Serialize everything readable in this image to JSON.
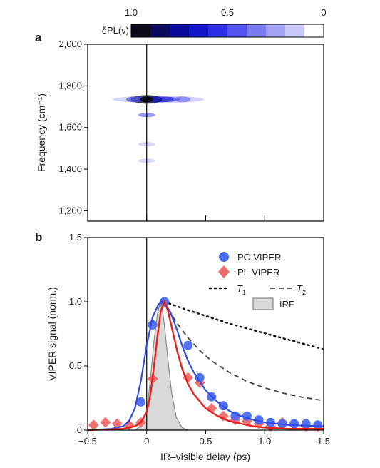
{
  "figure": {
    "panel_a": "a",
    "panel_b": "b"
  },
  "colorbar": {
    "label": "δPL(ν)",
    "tick_labels": [
      "1.0",
      "0.5",
      "0"
    ],
    "tick_values": [
      1.0,
      0.5,
      0.0
    ],
    "colors": [
      "#0a0a1a",
      "#0a0a5c",
      "#0a0a99",
      "#1414c8",
      "#2e2ee6",
      "#5252ee",
      "#7a7af2",
      "#a3a3f6",
      "#c9c9fa",
      "#ffffff"
    ]
  },
  "chart_data": [
    {
      "type": "heatmap",
      "panel": "a",
      "ylabel": "Frequency (cm⁻¹)",
      "xlabel": "",
      "xlim": [
        -0.5,
        1.5
      ],
      "ylim": [
        1150,
        2000
      ],
      "yticks": [
        1200,
        1400,
        1600,
        1800,
        2000
      ],
      "ytick_labels": [
        "1,200",
        "1,400",
        "1,600",
        "1,800",
        "2,000"
      ],
      "xticks": [
        0,
        0.5,
        1.0
      ],
      "vline_x": 0,
      "color_scale": "dark blue (1.0) to white (0)",
      "features": [
        {
          "x": 0.0,
          "y": 1735,
          "intensity": 1.0
        },
        {
          "x": 0.1,
          "y": 1735,
          "intensity": 0.7
        },
        {
          "x": 0.3,
          "y": 1735,
          "intensity": 0.35
        },
        {
          "x": -0.1,
          "y": 1735,
          "intensity": 0.4
        },
        {
          "x": 0.0,
          "y": 1660,
          "intensity": 0.3
        },
        {
          "x": 0.0,
          "y": 1520,
          "intensity": 0.15
        },
        {
          "x": 0.0,
          "y": 1440,
          "intensity": 0.1
        }
      ]
    },
    {
      "type": "line",
      "panel": "b",
      "xlabel": "IR–visible delay (ps)",
      "ylabel": "VIPER signal (norm.)",
      "xlim": [
        -0.5,
        1.5
      ],
      "ylim": [
        0,
        1.5
      ],
      "xticks": [
        -0.5,
        0,
        0.5,
        1.0,
        1.5
      ],
      "xtick_labels": [
        "−0.5",
        "0",
        "0.5",
        "1.0",
        "1.5"
      ],
      "yticks": [
        0,
        0.5,
        1.0,
        1.5
      ],
      "ytick_labels": [
        "0",
        "0.5",
        "1.0",
        "1.5"
      ],
      "vline_x": 0,
      "legend": {
        "position": "top-right",
        "pc": "PC-VIPER",
        "pl": "PL-VIPER",
        "t1": "T",
        "t1_sub": "1",
        "t2": "T",
        "t2_sub": "2",
        "irf": "IRF"
      },
      "series": [
        {
          "name": "PC-VIPER",
          "kind": "scatter",
          "marker": "circle",
          "color": "#4a6cf0",
          "x": [
            -0.05,
            0.05,
            0.15,
            0.35,
            0.45,
            0.55,
            0.65,
            0.75,
            0.85,
            0.95,
            1.05,
            1.15,
            1.25,
            1.35,
            1.45
          ],
          "y": [
            0.22,
            0.82,
            1.0,
            0.66,
            0.41,
            0.26,
            0.19,
            0.11,
            0.11,
            0.08,
            0.06,
            0.05,
            0.05,
            0.05,
            0.04
          ]
        },
        {
          "name": "PL-VIPER",
          "kind": "scatter",
          "marker": "diamond",
          "color": "#f06a6a",
          "x": [
            -0.45,
            -0.35,
            -0.25,
            -0.15,
            -0.05,
            0.05,
            0.15,
            0.35,
            0.45,
            0.55,
            0.65,
            0.75,
            0.85,
            0.95,
            1.05,
            1.15,
            1.25,
            1.35,
            1.45
          ],
          "y": [
            0.04,
            0.06,
            0.05,
            0.04,
            0.06,
            0.4,
            1.0,
            0.41,
            0.37,
            0.17,
            0.11,
            0.08,
            0.07,
            0.05,
            0.03,
            0.06,
            0.04,
            0.03,
            0.03
          ]
        },
        {
          "name": "PC-VIPER fit",
          "kind": "line",
          "color": "#2f4de0",
          "x": [
            -0.5,
            -0.3,
            -0.2,
            -0.15,
            -0.1,
            -0.05,
            0.0,
            0.05,
            0.1,
            0.13,
            0.15,
            0.2,
            0.25,
            0.3,
            0.35,
            0.4,
            0.5,
            0.6,
            0.7,
            0.8,
            0.9,
            1.0,
            1.2,
            1.5
          ],
          "y": [
            0.0,
            0.01,
            0.03,
            0.07,
            0.17,
            0.38,
            0.66,
            0.88,
            0.98,
            1.0,
            0.99,
            0.92,
            0.8,
            0.66,
            0.54,
            0.45,
            0.31,
            0.22,
            0.15,
            0.11,
            0.08,
            0.06,
            0.04,
            0.03
          ]
        },
        {
          "name": "PL-VIPER fit",
          "kind": "line",
          "color": "#e81e1e",
          "x": [
            -0.5,
            -0.2,
            -0.1,
            -0.05,
            0.0,
            0.03,
            0.06,
            0.09,
            0.12,
            0.15,
            0.18,
            0.22,
            0.26,
            0.3,
            0.35,
            0.4,
            0.5,
            0.6,
            0.7,
            0.8,
            0.9,
            1.0,
            1.2,
            1.5
          ],
          "y": [
            0.0,
            0.01,
            0.03,
            0.06,
            0.14,
            0.27,
            0.48,
            0.72,
            0.93,
            1.0,
            0.93,
            0.77,
            0.61,
            0.48,
            0.36,
            0.28,
            0.17,
            0.11,
            0.07,
            0.05,
            0.03,
            0.02,
            0.01,
            0.01
          ]
        },
        {
          "name": "T1",
          "kind": "line",
          "dash": "dotted",
          "color": "#111111",
          "x": [
            0.15,
            0.3,
            0.5,
            0.7,
            0.9,
            1.1,
            1.3,
            1.5
          ],
          "y": [
            1.0,
            0.95,
            0.89,
            0.83,
            0.78,
            0.73,
            0.68,
            0.63
          ]
        },
        {
          "name": "T2",
          "kind": "line",
          "dash": "dashed",
          "color": "#444444",
          "x": [
            0.15,
            0.25,
            0.35,
            0.45,
            0.55,
            0.7,
            0.85,
            1.0,
            1.15,
            1.3,
            1.5
          ],
          "y": [
            1.0,
            0.84,
            0.72,
            0.62,
            0.54,
            0.45,
            0.38,
            0.33,
            0.29,
            0.26,
            0.23
          ]
        },
        {
          "name": "IRF",
          "kind": "area",
          "color": "#d9d9d9",
          "x": [
            -0.1,
            -0.05,
            0.0,
            0.03,
            0.06,
            0.09,
            0.11,
            0.13,
            0.15,
            0.18,
            0.21,
            0.25,
            0.3,
            0.35
          ],
          "y": [
            0.0,
            0.03,
            0.15,
            0.38,
            0.68,
            0.9,
            0.98,
            0.96,
            0.82,
            0.55,
            0.3,
            0.1,
            0.02,
            0.0
          ]
        }
      ]
    }
  ]
}
